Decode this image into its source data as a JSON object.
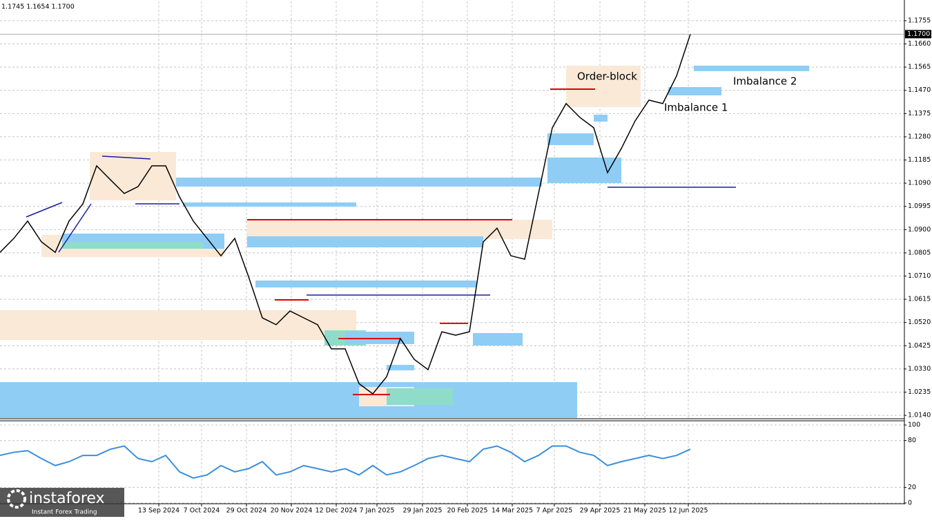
{
  "header": {
    "ohlc": "1.1745 1.1654 1.1700"
  },
  "logo": {
    "brand": "instaforex",
    "tagline": "Instant Forex Trading"
  },
  "chart_data": [
    {
      "type": "line",
      "color": "#000000",
      "values": [
        1.0807,
        1.0864,
        1.0935,
        1.085,
        1.0807,
        1.0935,
        1.1005,
        1.1161,
        1.1104,
        1.1048,
        1.1076,
        1.1161,
        1.1161,
        1.1034,
        1.0935,
        1.0864,
        1.0793,
        1.0864,
        1.0708,
        1.0539,
        1.0511,
        1.0567,
        1.0539,
        1.0511,
        1.0412,
        1.0412,
        1.027,
        1.0228,
        1.0298,
        1.0454,
        1.0369,
        1.0327,
        1.0482,
        1.0468,
        1.0482,
        1.085,
        1.0906,
        1.0793,
        1.0779,
        1.1048,
        1.1317,
        1.1416,
        1.1359,
        1.1317,
        1.1133,
        1.1232,
        1.1345,
        1.143,
        1.1416,
        1.1529,
        1.17
      ],
      "xlim": [
        0,
        65.5
      ],
      "ylim": [
        1.0129,
        1.1834
      ],
      "yticks": [
        {
          "value": 1.1755,
          "label": "1.1755"
        },
        {
          "value": 1.166,
          "label": "1.1660"
        },
        {
          "value": 1.1565,
          "label": "1.1565"
        },
        {
          "value": 1.147,
          "label": "1.1470"
        },
        {
          "value": 1.1375,
          "label": "1.1375"
        },
        {
          "value": 1.128,
          "label": "1.1280"
        },
        {
          "value": 1.1185,
          "label": "1.1185"
        },
        {
          "value": 1.109,
          "label": "1.1090"
        },
        {
          "value": 1.0995,
          "label": "1.0995"
        },
        {
          "value": 1.09,
          "label": "1.0900"
        },
        {
          "value": 1.0805,
          "label": "1.0805"
        },
        {
          "value": 1.071,
          "label": "1.0710"
        },
        {
          "value": 1.0615,
          "label": "1.0615"
        },
        {
          "value": 1.052,
          "label": "1.0520"
        },
        {
          "value": 1.0425,
          "label": "1.0425"
        },
        {
          "value": 1.033,
          "label": "1.0330"
        },
        {
          "value": 1.0235,
          "label": "1.0235"
        },
        {
          "value": 1.014,
          "label": "1.0140"
        }
      ],
      "last_price": {
        "value": 1.17,
        "label": "1.1700"
      },
      "annotations": [
        "Order-block",
        "Imbalance 1",
        "Imbalance 2"
      ],
      "grid": true
    },
    {
      "type": "line",
      "color": "#3a8fdc",
      "values": [
        61,
        65,
        67,
        57,
        48,
        53,
        61,
        61,
        69,
        73,
        57,
        53,
        61,
        40,
        32,
        36,
        48,
        40,
        44,
        53,
        36,
        40,
        48,
        44,
        40,
        44,
        36,
        48,
        36,
        40,
        48,
        57,
        61,
        57,
        53,
        69,
        73,
        65,
        53,
        61,
        73,
        73,
        65,
        61,
        48,
        53,
        57,
        61,
        57,
        61,
        69
      ],
      "xlim": [
        0,
        65.5
      ],
      "ylim": [
        0,
        100
      ],
      "yticks": [
        100,
        80,
        20,
        0
      ],
      "xticks": [
        {
          "value": 11.5,
          "label": "13 Sep 2024"
        },
        {
          "value": 14.6,
          "label": "7 Oct 2024"
        },
        {
          "value": 17.85,
          "label": "29 Oct 2024"
        },
        {
          "value": 21.1,
          "label": "20 Nov 2024"
        },
        {
          "value": 24.35,
          "label": "12 Dec 2024"
        },
        {
          "value": 27.3,
          "label": "7 Jan 2025"
        },
        {
          "value": 30.6,
          "label": "29 Jan 2025"
        },
        {
          "value": 33.85,
          "label": "20 Feb 2025"
        },
        {
          "value": 37.1,
          "label": "14 Mar 2025"
        },
        {
          "value": 40.15,
          "label": "7 Apr 2025"
        },
        {
          "value": 43.45,
          "label": "29 Apr 2025"
        },
        {
          "value": 46.7,
          "label": "21 May 2025"
        },
        {
          "value": 49.85,
          "label": "12 Jun 2025"
        }
      ],
      "grid": true
    }
  ]
}
